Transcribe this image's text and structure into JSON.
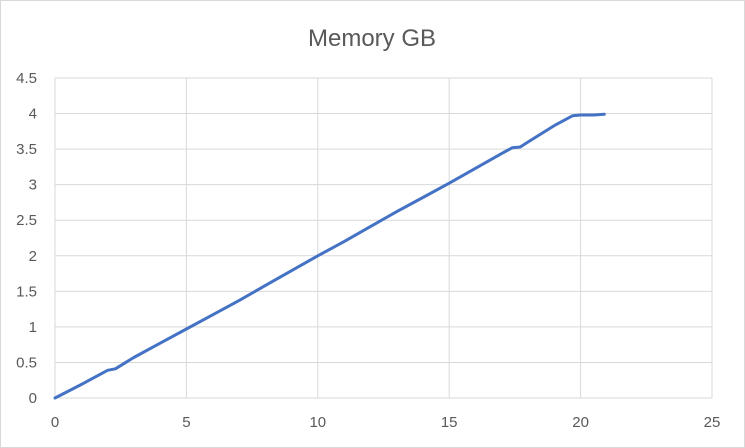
{
  "chart_data": {
    "type": "line",
    "title": "Memory GB",
    "xlabel": "",
    "ylabel": "",
    "xlim": [
      0,
      25
    ],
    "ylim": [
      0,
      4.5
    ],
    "x_ticks": [
      0,
      5,
      10,
      15,
      20,
      25
    ],
    "y_ticks": [
      0,
      0.5,
      1,
      1.5,
      2,
      2.5,
      3,
      3.5,
      4,
      4.5
    ],
    "x_tick_labels": [
      "0",
      "5",
      "10",
      "15",
      "20",
      "25"
    ],
    "y_tick_labels": [
      "0",
      "0.5",
      "1",
      "1.5",
      "2",
      "2.5",
      "3",
      "3.5",
      "4",
      "4.5"
    ],
    "grid": true,
    "legend": "none",
    "series": [
      {
        "color": "#4472c4",
        "x": [
          0,
          1,
          2,
          2.3,
          3,
          4,
          5,
          6,
          7,
          8,
          9,
          10,
          11,
          12,
          13,
          14,
          15,
          16,
          17,
          17.4,
          17.7,
          18,
          19,
          19.7,
          20,
          20.5,
          20.9
        ],
        "y": [
          0,
          0.19,
          0.39,
          0.41,
          0.57,
          0.77,
          0.97,
          1.17,
          1.37,
          1.58,
          1.79,
          2.0,
          2.2,
          2.41,
          2.62,
          2.82,
          3.02,
          3.23,
          3.44,
          3.52,
          3.53,
          3.6,
          3.83,
          3.97,
          3.98,
          3.98,
          3.99
        ]
      }
    ]
  }
}
